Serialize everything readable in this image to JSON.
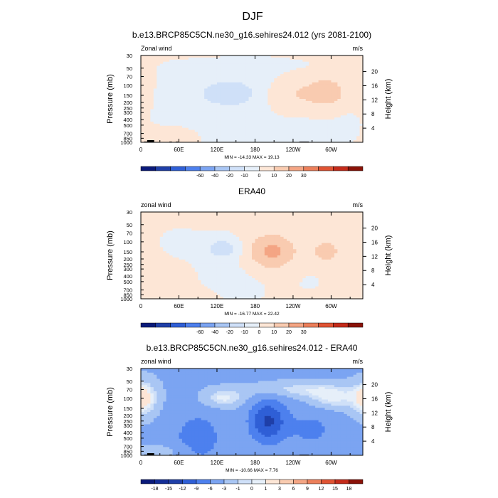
{
  "main_title": "DJF",
  "chart_data": [
    {
      "type": "heatmap",
      "title": "b.e13.BRCP85C5CN.ne30_g16.sehires24.012 (yrs 2081-2100)",
      "left_label": "Zonal wind",
      "right_label": "m/s",
      "ylabel": "Pressure (mb)",
      "y2label": "Height (km)",
      "xticks": [
        "0",
        "60E",
        "120E",
        "180",
        "120W",
        "60W"
      ],
      "yticks": [
        "30",
        "50",
        "70",
        "100",
        "150",
        "200",
        "250",
        "300",
        "400",
        "500",
        "700",
        "850",
        "1000"
      ],
      "y2ticks": [
        "20",
        "16",
        "12",
        "8",
        "4"
      ],
      "stats": "MIN = -14.33  MAX =  19.13",
      "levels": [
        -60,
        -40,
        -20,
        -10,
        0,
        10,
        20,
        30
      ],
      "level_labels": [
        "-60",
        "-40",
        "-20",
        "-10",
        "0",
        "10",
        "20",
        "30"
      ],
      "colors": [
        "#0a1a7a",
        "#1f3fa8",
        "#2f5fd6",
        "#4d80ee",
        "#7ba4f2",
        "#a9c6f4",
        "#cfe0f8",
        "#e6eff9",
        "#fde6d6",
        "#f9cbb0",
        "#f4a584",
        "#ec7f5a",
        "#e05333",
        "#c42b1a",
        "#8a1208"
      ],
      "features": [
        {
          "lon": 140,
          "p": 140,
          "v": -12,
          "slon": 30,
          "slogp": 0.17
        },
        {
          "lon": 200,
          "p": 120,
          "v": -6,
          "slon": 100,
          "slogp": 0.35
        },
        {
          "lon": 240,
          "p": 140,
          "v": 13,
          "slon": 32,
          "slogp": 0.21
        },
        {
          "lon": 295,
          "p": 130,
          "v": 19,
          "slon": 22,
          "slogp": 0.19
        },
        {
          "lon": 55,
          "p": 150,
          "v": -4,
          "slon": 70,
          "slogp": 0.35
        },
        {
          "lon": 0,
          "p": 130,
          "v": 7,
          "slon": 18,
          "slogp": 0.25
        },
        {
          "lon": 180,
          "p": 800,
          "v": -5,
          "slon": 110,
          "slogp": 0.2
        },
        {
          "lon": 60,
          "p": 800,
          "v": 4,
          "slon": 40,
          "slogp": 0.15
        }
      ],
      "base": 1.5,
      "terrain": [
        [
          5,
          10,
          1
        ],
        [
          10,
          21,
          3
        ],
        [
          45,
          49,
          1
        ],
        [
          55,
          59,
          1
        ],
        [
          250,
          265,
          1
        ]
      ]
    },
    {
      "type": "heatmap",
      "title": "ERA40",
      "left_label": "zonal wind",
      "right_label": "m/s",
      "ylabel": "Pressure (mb)",
      "y2label": "Height (km)",
      "xticks": [
        "0",
        "60E",
        "120E",
        "180",
        "120W",
        "60W"
      ],
      "yticks": [
        "30",
        "50",
        "70",
        "100",
        "150",
        "200",
        "250",
        "300",
        "400",
        "500",
        "700",
        "850",
        "1000"
      ],
      "y2ticks": [
        "20",
        "16",
        "12",
        "8",
        "4"
      ],
      "stats": "MIN = -16.77  MAX =  22.42",
      "levels": [
        -60,
        -40,
        -20,
        -10,
        0,
        10,
        20,
        30
      ],
      "level_labels": [
        "-60",
        "-40",
        "-20",
        "-10",
        "0",
        "10",
        "20",
        "30"
      ],
      "colors": [
        "#0a1a7a",
        "#1f3fa8",
        "#2f5fd6",
        "#4d80ee",
        "#7ba4f2",
        "#a9c6f4",
        "#cfe0f8",
        "#e6eff9",
        "#fde6d6",
        "#f9cbb0",
        "#f4a584",
        "#ec7f5a",
        "#e05333",
        "#c42b1a",
        "#8a1208"
      ],
      "features": [
        {
          "lon": 130,
          "p": 130,
          "v": -16,
          "slon": 20,
          "slogp": 0.13
        },
        {
          "lon": 205,
          "p": 150,
          "v": 22,
          "slon": 28,
          "slogp": 0.22
        },
        {
          "lon": 292,
          "p": 150,
          "v": 13,
          "slon": 18,
          "slogp": 0.17
        },
        {
          "lon": 150,
          "p": 400,
          "v": -4,
          "slon": 40,
          "slogp": 0.4
        },
        {
          "lon": 60,
          "p": 100,
          "v": -2,
          "slon": 40,
          "slogp": 0.3
        },
        {
          "lon": 265,
          "p": 400,
          "v": -2,
          "slon": 25,
          "slogp": 0.3
        },
        {
          "lon": 60,
          "p": 950,
          "v": 3,
          "slon": 40,
          "slogp": 0.1
        }
      ],
      "base": 1.5,
      "terrain": []
    },
    {
      "type": "heatmap",
      "title": "b.e13.BRCP85C5CN.ne30_g16.sehires24.012 - ERA40",
      "left_label": "zonal wind",
      "right_label": "m/s",
      "ylabel": "Pressure (mb)",
      "y2label": "Height (km)",
      "xticks": [
        "0",
        "60E",
        "120E",
        "180",
        "120W",
        "60W"
      ],
      "yticks": [
        "30",
        "50",
        "70",
        "100",
        "150",
        "200",
        "250",
        "300",
        "400",
        "500",
        "700",
        "850",
        "1000"
      ],
      "y2ticks": [
        "20",
        "16",
        "12",
        "8",
        "4"
      ],
      "stats": "MIN = -10.66  MAX =   7.76",
      "levels": [
        -18,
        -15,
        -12,
        -9,
        -6,
        -3,
        -1,
        0,
        1,
        3,
        6,
        9,
        12,
        15,
        18
      ],
      "level_labels": [
        "-18",
        "-15",
        "-12",
        "-9",
        "-6",
        "-3",
        "-1",
        "0",
        "1",
        "3",
        "6",
        "9",
        "12",
        "15",
        "18"
      ],
      "colors": [
        "#0a1a7a",
        "#132d96",
        "#1f3fa8",
        "#2f5fd6",
        "#4d80ee",
        "#7ba4f2",
        "#a9c6f4",
        "#cfe0f8",
        "#e6eff9",
        "#fde6d6",
        "#f9cbb0",
        "#f4a584",
        "#ec7f5a",
        "#e05333",
        "#c42b1a",
        "#8a1208"
      ],
      "features": [
        {
          "lon": 200,
          "p": 250,
          "v": -9,
          "slon": 20,
          "slogp": 0.26
        },
        {
          "lon": 0,
          "p": 100,
          "v": 6,
          "slon": 18,
          "slogp": 0.22
        },
        {
          "lon": 130,
          "p": 100,
          "v": 4,
          "slon": 25,
          "slogp": 0.12
        },
        {
          "lon": 300,
          "p": 100,
          "v": 4,
          "slon": 28,
          "slogp": 0.15
        },
        {
          "lon": 240,
          "p": 70,
          "v": 3,
          "slon": 50,
          "slogp": 0.1
        },
        {
          "lon": 90,
          "p": 500,
          "v": -4,
          "slon": 30,
          "slogp": 0.35
        },
        {
          "lon": 270,
          "p": 350,
          "v": -3,
          "slon": 30,
          "slogp": 0.3
        },
        {
          "lon": 40,
          "p": 850,
          "v": 2,
          "slon": 30,
          "slogp": 0.1
        }
      ],
      "base": -3.5,
      "terrain": [
        [
          5,
          10,
          1
        ],
        [
          10,
          21,
          3
        ],
        [
          45,
          49,
          1
        ],
        [
          55,
          59,
          1
        ],
        [
          250,
          265,
          1
        ]
      ]
    }
  ]
}
